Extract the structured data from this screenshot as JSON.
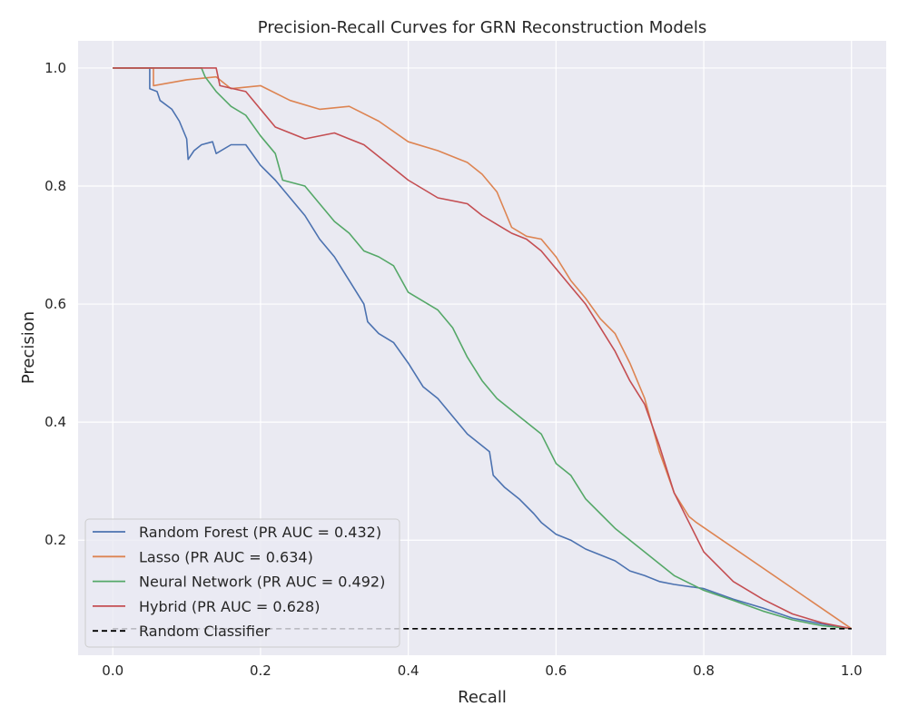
{
  "chart_data": {
    "type": "line",
    "title": "Precision-Recall Curves for GRN Reconstruction Models",
    "xlabel": "Recall",
    "ylabel": "Precision",
    "xlim": [
      -0.047,
      1.047
    ],
    "ylim": [
      0.0051,
      1.046
    ],
    "x_ticks": [
      "0.0",
      "0.2",
      "0.4",
      "0.6",
      "0.8",
      "1.0"
    ],
    "y_ticks": [
      "0.2",
      "0.4",
      "0.6",
      "0.8",
      "1.0"
    ],
    "grid": true,
    "legend_position": "lower-left",
    "series": [
      {
        "name": "Random Forest (PR AUC = 0.432)",
        "color": "#4c72b0",
        "style": "solid",
        "points": [
          [
            0,
            1
          ],
          [
            0.05,
            1
          ],
          [
            0.05,
            0.965
          ],
          [
            0.06,
            0.96
          ],
          [
            0.064,
            0.945
          ],
          [
            0.08,
            0.93
          ],
          [
            0.09,
            0.91
          ],
          [
            0.1,
            0.88
          ],
          [
            0.102,
            0.845
          ],
          [
            0.11,
            0.86
          ],
          [
            0.12,
            0.87
          ],
          [
            0.135,
            0.875
          ],
          [
            0.14,
            0.855
          ],
          [
            0.16,
            0.87
          ],
          [
            0.18,
            0.87
          ],
          [
            0.2,
            0.835
          ],
          [
            0.22,
            0.81
          ],
          [
            0.24,
            0.78
          ],
          [
            0.26,
            0.75
          ],
          [
            0.28,
            0.71
          ],
          [
            0.3,
            0.68
          ],
          [
            0.32,
            0.64
          ],
          [
            0.34,
            0.6
          ],
          [
            0.345,
            0.57
          ],
          [
            0.36,
            0.55
          ],
          [
            0.38,
            0.535
          ],
          [
            0.4,
            0.5
          ],
          [
            0.42,
            0.46
          ],
          [
            0.44,
            0.44
          ],
          [
            0.46,
            0.41
          ],
          [
            0.48,
            0.38
          ],
          [
            0.5,
            0.36
          ],
          [
            0.51,
            0.35
          ],
          [
            0.515,
            0.31
          ],
          [
            0.53,
            0.29
          ],
          [
            0.55,
            0.27
          ],
          [
            0.57,
            0.245
          ],
          [
            0.58,
            0.23
          ],
          [
            0.6,
            0.21
          ],
          [
            0.62,
            0.2
          ],
          [
            0.64,
            0.185
          ],
          [
            0.66,
            0.175
          ],
          [
            0.68,
            0.165
          ],
          [
            0.7,
            0.148
          ],
          [
            0.72,
            0.14
          ],
          [
            0.74,
            0.13
          ],
          [
            0.76,
            0.125
          ],
          [
            0.8,
            0.118
          ],
          [
            0.84,
            0.1
          ],
          [
            0.88,
            0.085
          ],
          [
            0.92,
            0.068
          ],
          [
            0.96,
            0.058
          ],
          [
            1,
            0.05
          ]
        ]
      },
      {
        "name": "Lasso (PR AUC = 0.634)",
        "color": "#dd8452",
        "style": "solid",
        "points": [
          [
            0,
            1
          ],
          [
            0.055,
            1
          ],
          [
            0.055,
            0.97
          ],
          [
            0.1,
            0.98
          ],
          [
            0.14,
            0.985
          ],
          [
            0.16,
            0.965
          ],
          [
            0.2,
            0.97
          ],
          [
            0.24,
            0.945
          ],
          [
            0.28,
            0.93
          ],
          [
            0.32,
            0.935
          ],
          [
            0.36,
            0.91
          ],
          [
            0.4,
            0.875
          ],
          [
            0.44,
            0.86
          ],
          [
            0.48,
            0.84
          ],
          [
            0.5,
            0.82
          ],
          [
            0.52,
            0.79
          ],
          [
            0.53,
            0.76
          ],
          [
            0.54,
            0.73
          ],
          [
            0.56,
            0.715
          ],
          [
            0.58,
            0.71
          ],
          [
            0.6,
            0.68
          ],
          [
            0.62,
            0.64
          ],
          [
            0.64,
            0.61
          ],
          [
            0.66,
            0.575
          ],
          [
            0.68,
            0.55
          ],
          [
            0.7,
            0.5
          ],
          [
            0.72,
            0.44
          ],
          [
            0.74,
            0.35
          ],
          [
            0.76,
            0.28
          ],
          [
            0.78,
            0.24
          ],
          [
            0.79,
            0.23
          ],
          [
            1,
            0.05
          ]
        ]
      },
      {
        "name": "Neural Network (PR AUC = 0.492)",
        "color": "#55a868",
        "style": "solid",
        "points": [
          [
            0,
            1
          ],
          [
            0.12,
            1
          ],
          [
            0.125,
            0.985
          ],
          [
            0.14,
            0.96
          ],
          [
            0.16,
            0.935
          ],
          [
            0.18,
            0.92
          ],
          [
            0.2,
            0.885
          ],
          [
            0.22,
            0.855
          ],
          [
            0.23,
            0.81
          ],
          [
            0.26,
            0.8
          ],
          [
            0.28,
            0.77
          ],
          [
            0.3,
            0.74
          ],
          [
            0.32,
            0.72
          ],
          [
            0.34,
            0.69
          ],
          [
            0.36,
            0.68
          ],
          [
            0.38,
            0.665
          ],
          [
            0.4,
            0.62
          ],
          [
            0.44,
            0.59
          ],
          [
            0.46,
            0.56
          ],
          [
            0.48,
            0.51
          ],
          [
            0.5,
            0.47
          ],
          [
            0.52,
            0.44
          ],
          [
            0.55,
            0.41
          ],
          [
            0.58,
            0.38
          ],
          [
            0.6,
            0.33
          ],
          [
            0.62,
            0.31
          ],
          [
            0.64,
            0.27
          ],
          [
            0.66,
            0.245
          ],
          [
            0.68,
            0.22
          ],
          [
            0.7,
            0.2
          ],
          [
            0.72,
            0.18
          ],
          [
            0.74,
            0.16
          ],
          [
            0.76,
            0.14
          ],
          [
            0.8,
            0.115
          ],
          [
            0.84,
            0.098
          ],
          [
            0.88,
            0.08
          ],
          [
            0.92,
            0.065
          ],
          [
            0.96,
            0.055
          ],
          [
            1,
            0.05
          ]
        ]
      },
      {
        "name": "Hybrid (PR AUC = 0.628)",
        "color": "#c44e52",
        "style": "solid",
        "points": [
          [
            0,
            1
          ],
          [
            0.14,
            1
          ],
          [
            0.145,
            0.97
          ],
          [
            0.18,
            0.96
          ],
          [
            0.2,
            0.93
          ],
          [
            0.22,
            0.9
          ],
          [
            0.26,
            0.88
          ],
          [
            0.3,
            0.89
          ],
          [
            0.34,
            0.87
          ],
          [
            0.36,
            0.85
          ],
          [
            0.38,
            0.83
          ],
          [
            0.4,
            0.81
          ],
          [
            0.44,
            0.78
          ],
          [
            0.48,
            0.77
          ],
          [
            0.5,
            0.75
          ],
          [
            0.52,
            0.735
          ],
          [
            0.54,
            0.72
          ],
          [
            0.56,
            0.71
          ],
          [
            0.58,
            0.69
          ],
          [
            0.6,
            0.66
          ],
          [
            0.62,
            0.63
          ],
          [
            0.64,
            0.6
          ],
          [
            0.66,
            0.56
          ],
          [
            0.68,
            0.52
          ],
          [
            0.7,
            0.47
          ],
          [
            0.72,
            0.43
          ],
          [
            0.74,
            0.36
          ],
          [
            0.76,
            0.28
          ],
          [
            0.78,
            0.23
          ],
          [
            0.8,
            0.18
          ],
          [
            0.84,
            0.13
          ],
          [
            0.88,
            0.1
          ],
          [
            0.92,
            0.075
          ],
          [
            0.96,
            0.06
          ],
          [
            1,
            0.05
          ]
        ]
      },
      {
        "name": "Random Classifier",
        "color": "#000000",
        "style": "dashed",
        "points": [
          [
            0,
            0.05
          ],
          [
            1,
            0.05
          ]
        ]
      }
    ]
  }
}
